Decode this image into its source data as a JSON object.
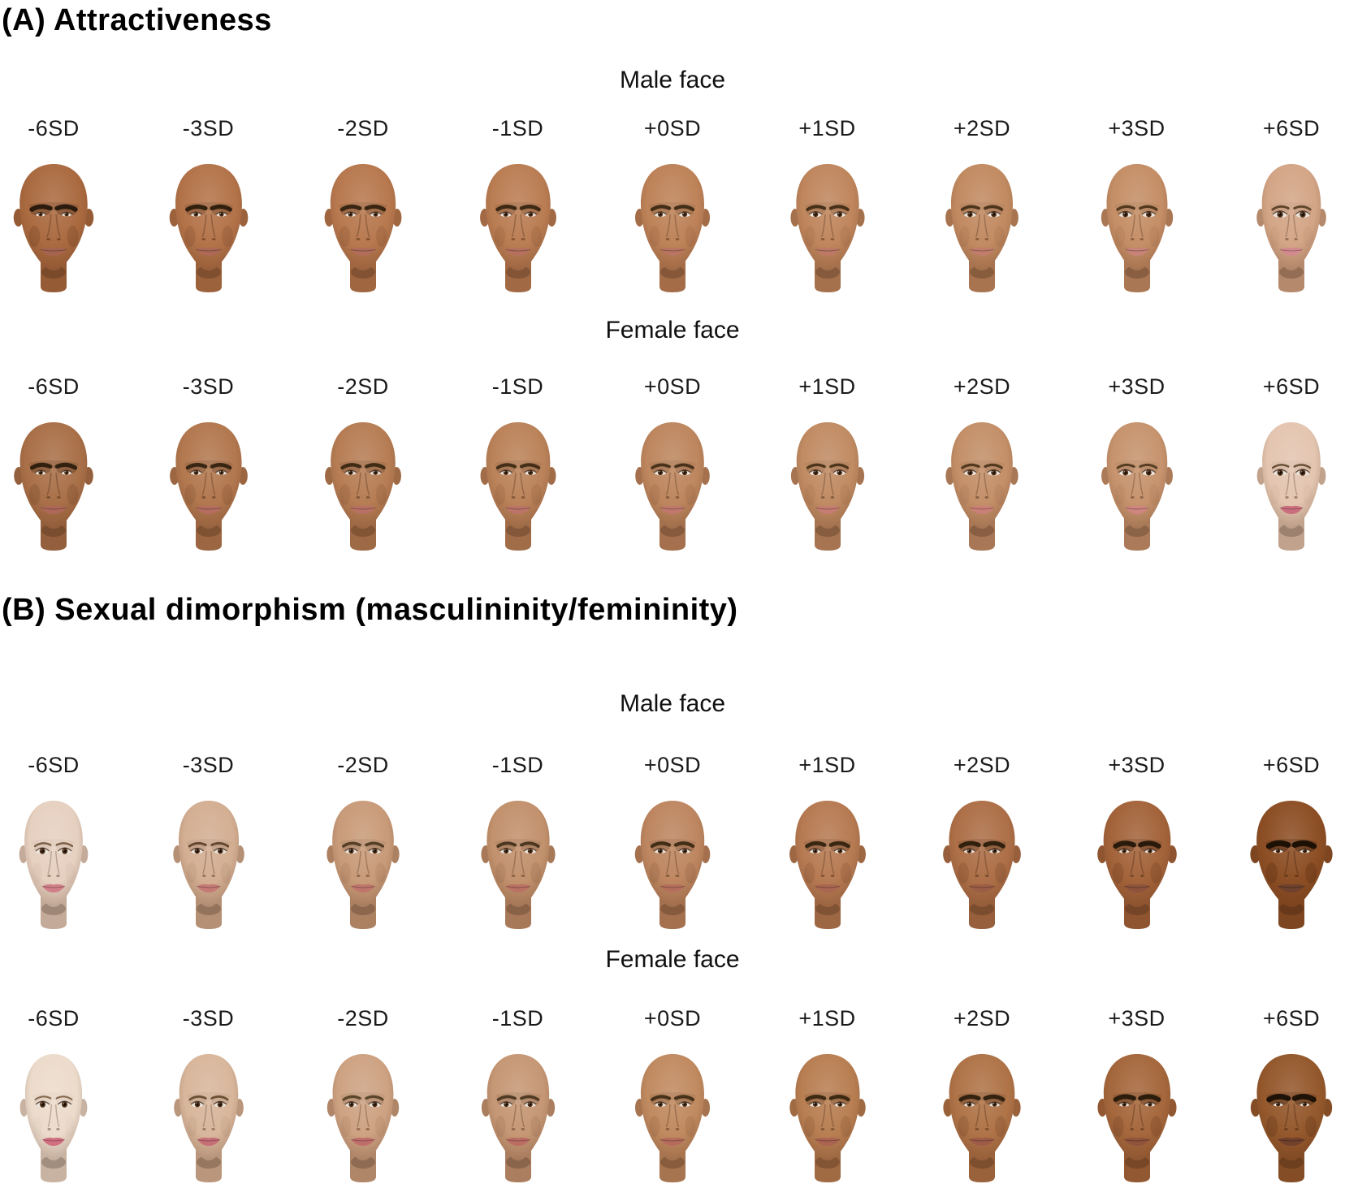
{
  "page": {
    "background": "#ffffff",
    "text_color": "#111111"
  },
  "panels": [
    {
      "id": "A",
      "title": "(A) Attractiveness",
      "rows": [
        {
          "header": "Male face",
          "faces": [
            {
              "label": "-6SD",
              "skin": "#aa6a40",
              "lip": "#a5644f",
              "brow": "#2b1a0e",
              "brow_w": 5.6,
              "eye": 0.8,
              "jaw": 1.07,
              "shade": 0.5
            },
            {
              "label": "-3SD",
              "skin": "#b37349",
              "lip": "#ac6955",
              "brow": "#32200f",
              "brow_w": 5.2,
              "eye": 0.87,
              "jaw": 1.05,
              "shade": 0.4
            },
            {
              "label": "-2SD",
              "skin": "#b7784e",
              "lip": "#b16d59",
              "brow": "#382512",
              "brow_w": 4.9,
              "eye": 0.91,
              "jaw": 1.03,
              "shade": 0.34
            },
            {
              "label": "-1SD",
              "skin": "#ba7d53",
              "lip": "#b5715d",
              "brow": "#3d2914",
              "brow_w": 4.6,
              "eye": 0.95,
              "jaw": 1.02,
              "shade": 0.3
            },
            {
              "label": "+0SD",
              "skin": "#bd8258",
              "lip": "#b97561",
              "brow": "#422d16",
              "brow_w": 4.3,
              "eye": 1.0,
              "jaw": 1.0,
              "shade": 0.26
            },
            {
              "label": "+1SD",
              "skin": "#bf865d",
              "lip": "#bd7965",
              "brow": "#473118",
              "brow_w": 4.0,
              "eye": 1.05,
              "jaw": 0.99,
              "shade": 0.23
            },
            {
              "label": "+2SD",
              "skin": "#c18a61",
              "lip": "#c27d6c",
              "brow": "#4c351b",
              "brow_w": 3.7,
              "eye": 1.1,
              "jaw": 0.975,
              "shade": 0.2
            },
            {
              "label": "+3SD",
              "skin": "#c48e66",
              "lip": "#c88378",
              "brow": "#52391e",
              "brow_w": 3.4,
              "eye": 1.16,
              "jaw": 0.96,
              "shade": 0.18
            },
            {
              "label": "+6SD",
              "skin": "#d3a586",
              "lip": "#d28a8e",
              "brow": "#5f452c",
              "brow_w": 2.9,
              "eye": 1.3,
              "jaw": 0.93,
              "shade": 0.12
            }
          ]
        },
        {
          "header": "Female face",
          "faces": [
            {
              "label": "-6SD",
              "skin": "#a97048",
              "lip": "#ae685a",
              "brow": "#32200f",
              "brow_w": 5.0,
              "eye": 0.85,
              "jaw": 1.06,
              "shade": 0.46
            },
            {
              "label": "-3SD",
              "skin": "#b2784f",
              "lip": "#b46d60",
              "brow": "#392612",
              "brow_w": 4.6,
              "eye": 0.91,
              "jaw": 1.04,
              "shade": 0.38
            },
            {
              "label": "-2SD",
              "skin": "#b67d54",
              "lip": "#b87165",
              "brow": "#3f2a14",
              "brow_w": 4.3,
              "eye": 0.95,
              "jaw": 1.02,
              "shade": 0.32
            },
            {
              "label": "-1SD",
              "skin": "#ba8259",
              "lip": "#bc7469",
              "brow": "#442e17",
              "brow_w": 4.0,
              "eye": 0.99,
              "jaw": 1.01,
              "shade": 0.28
            },
            {
              "label": "+0SD",
              "skin": "#bd865e",
              "lip": "#c0786d",
              "brow": "#493219",
              "brow_w": 3.7,
              "eye": 1.03,
              "jaw": 0.995,
              "shade": 0.25
            },
            {
              "label": "+1SD",
              "skin": "#c08b63",
              "lip": "#c57c72",
              "brow": "#4e361c",
              "brow_w": 3.4,
              "eye": 1.07,
              "jaw": 0.98,
              "shade": 0.22
            },
            {
              "label": "+2SD",
              "skin": "#c38f68",
              "lip": "#ca8078",
              "brow": "#533a1f",
              "brow_w": 3.2,
              "eye": 1.12,
              "jaw": 0.97,
              "shade": 0.19
            },
            {
              "label": "+3SD",
              "skin": "#c6936d",
              "lip": "#cf8580",
              "brow": "#583e22",
              "brow_w": 3.0,
              "eye": 1.17,
              "jaw": 0.955,
              "shade": 0.17
            },
            {
              "label": "+6SD",
              "skin": "#e3c5b0",
              "lip": "#cb6f7e",
              "brow": "#6b5138",
              "brow_w": 2.5,
              "eye": 1.28,
              "jaw": 0.92,
              "shade": 0.1
            }
          ]
        }
      ]
    },
    {
      "id": "B",
      "title": "(B) Sexual dimorphism (masculininity/femininity)",
      "rows": [
        {
          "header": "Male face",
          "faces": [
            {
              "label": "-6SD",
              "skin": "#e6d0c0",
              "lip": "#d07f88",
              "brow": "#7a5c44",
              "brow_w": 2.4,
              "eye": 1.22,
              "jaw": 0.92,
              "shade": 0.1
            },
            {
              "label": "-3SD",
              "skin": "#d3ae92",
              "lip": "#c57a76",
              "brow": "#64482f",
              "brow_w": 3.0,
              "eye": 1.12,
              "jaw": 0.95,
              "shade": 0.18
            },
            {
              "label": "-2SD",
              "skin": "#c89b79",
              "lip": "#be766c",
              "brow": "#554027",
              "brow_w": 3.5,
              "eye": 1.06,
              "jaw": 0.97,
              "shade": 0.24
            },
            {
              "label": "-1SD",
              "skin": "#c2916d",
              "lip": "#b97263",
              "brow": "#4b3620",
              "brow_w": 3.9,
              "eye": 1.02,
              "jaw": 0.99,
              "shade": 0.28
            },
            {
              "label": "+0SD",
              "skin": "#bd8660",
              "lip": "#b46f5c",
              "brow": "#422d16",
              "brow_w": 4.3,
              "eye": 0.98,
              "jaw": 1.005,
              "shade": 0.32
            },
            {
              "label": "+1SD",
              "skin": "#b67a52",
              "lip": "#a96651",
              "brow": "#3a2712",
              "brow_w": 4.8,
              "eye": 0.94,
              "jaw": 1.02,
              "shade": 0.38
            },
            {
              "label": "+2SD",
              "skin": "#ad6f47",
              "lip": "#9c5d47",
              "brow": "#31200e",
              "brow_w": 5.4,
              "eye": 0.9,
              "jaw": 1.04,
              "shade": 0.44
            },
            {
              "label": "+3SD",
              "skin": "#a3633a",
              "lip": "#8e533c",
              "brow": "#2a1a0b",
              "brow_w": 6.0,
              "eye": 0.86,
              "jaw": 1.06,
              "shade": 0.5
            },
            {
              "label": "+6SD",
              "skin": "#8c4e24",
              "lip": "#6e422e",
              "brow": "#1d1106",
              "brow_w": 7.0,
              "eye": 0.8,
              "jaw": 1.1,
              "shade": 0.62
            }
          ]
        },
        {
          "header": "Female face",
          "faces": [
            {
              "label": "-6SD",
              "skin": "#ecdbcb",
              "lip": "#d26f80",
              "brow": "#86684e",
              "brow_w": 2.2,
              "eye": 1.25,
              "jaw": 0.9,
              "shade": 0.08
            },
            {
              "label": "-3SD",
              "skin": "#d8b69b",
              "lip": "#c76f76",
              "brow": "#6d5136",
              "brow_w": 2.8,
              "eye": 1.14,
              "jaw": 0.93,
              "shade": 0.16
            },
            {
              "label": "-2SD",
              "skin": "#cda282",
              "lip": "#c06e6c",
              "brow": "#5c462b",
              "brow_w": 3.3,
              "eye": 1.08,
              "jaw": 0.96,
              "shade": 0.22
            },
            {
              "label": "-1SD",
              "skin": "#c59775",
              "lip": "#bb6d64",
              "brow": "#513b23",
              "brow_w": 3.7,
              "eye": 1.03,
              "jaw": 0.98,
              "shade": 0.26
            },
            {
              "label": "+0SD",
              "skin": "#c08a60",
              "lip": "#b56c5c",
              "brow": "#473118",
              "brow_w": 4.1,
              "eye": 0.99,
              "jaw": 1.0,
              "shade": 0.3
            },
            {
              "label": "+1SD",
              "skin": "#b87e52",
              "lip": "#ab6452",
              "brow": "#3e2a13",
              "brow_w": 4.6,
              "eye": 0.95,
              "jaw": 1.015,
              "shade": 0.36
            },
            {
              "label": "+2SD",
              "skin": "#af7347",
              "lip": "#9e5c48",
              "brow": "#342210",
              "brow_w": 5.2,
              "eye": 0.91,
              "jaw": 1.035,
              "shade": 0.42
            },
            {
              "label": "+3SD",
              "skin": "#a5673c",
              "lip": "#90533c",
              "brow": "#2c1c0c",
              "brow_w": 5.8,
              "eye": 0.86,
              "jaw": 1.055,
              "shade": 0.48
            },
            {
              "label": "+6SD",
              "skin": "#94582c",
              "lip": "#71412c",
              "brow": "#1f1207",
              "brow_w": 6.6,
              "eye": 0.8,
              "jaw": 1.09,
              "shade": 0.58
            }
          ]
        }
      ]
    }
  ]
}
